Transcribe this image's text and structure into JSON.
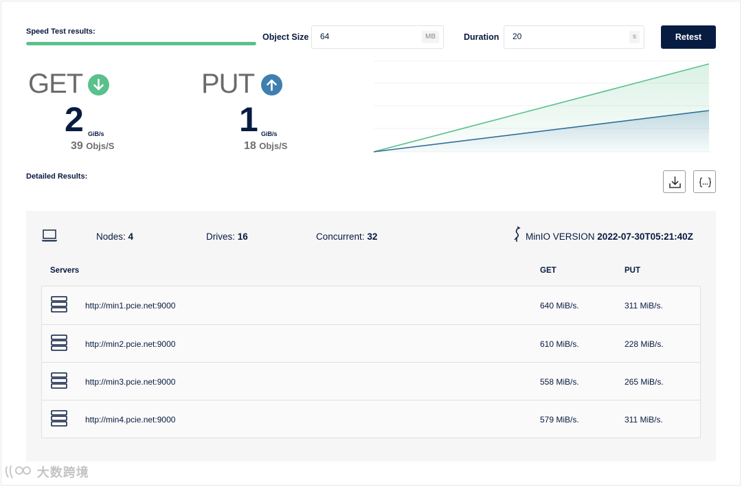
{
  "header": {
    "speed_test_label": "Speed Test results:",
    "progress_fraction": 1.0,
    "object_size_label": "Object Size",
    "object_size_value": "64",
    "object_size_unit": "MB",
    "duration_label": "Duration",
    "duration_value": "20",
    "duration_unit": "s",
    "retest_label": "Retest"
  },
  "metrics": {
    "get": {
      "title": "GET",
      "value": "2",
      "unit": "GiB/s",
      "objs_value": "39",
      "objs_label": "Objs/S",
      "icon": "arrow-down-circle-icon",
      "color": "#5ac08c"
    },
    "put": {
      "title": "PUT",
      "value": "1",
      "unit": "GiB/s",
      "objs_value": "18",
      "objs_label": "Objs/S",
      "icon": "arrow-up-circle-icon",
      "color": "#3f7fb0"
    }
  },
  "detailed": {
    "label": "Detailed Results:",
    "download_icon": "download-icon",
    "json_icon": "json-braces-icon"
  },
  "summary": {
    "nodes_label": "Nodes:",
    "nodes_value": "4",
    "drives_label": "Drives:",
    "drives_value": "16",
    "concurrent_label": "Concurrent:",
    "concurrent_value": "32",
    "version_label": "MinIO VERSION",
    "version_value": "2022-07-30T05:21:40Z"
  },
  "table": {
    "headers": {
      "servers": "Servers",
      "get": "GET",
      "put": "PUT"
    },
    "rows": [
      {
        "server": "http://min1.pcie.net:9000",
        "get": "640 MiB/s.",
        "put": "311 MiB/s."
      },
      {
        "server": "http://min2.pcie.net:9000",
        "get": "610 MiB/s.",
        "put": "228 MiB/s."
      },
      {
        "server": "http://min3.pcie.net:9000",
        "get": "558 MiB/s.",
        "put": "265 MiB/s."
      },
      {
        "server": "http://min4.pcie.net:9000",
        "get": "579 MiB/s.",
        "put": "311 MiB/s."
      }
    ]
  },
  "watermark": {
    "text": "大数跨境"
  },
  "colors": {
    "accent_green": "#5ac08c",
    "accent_blue": "#3f7fb0",
    "navy": "#081c42"
  }
}
